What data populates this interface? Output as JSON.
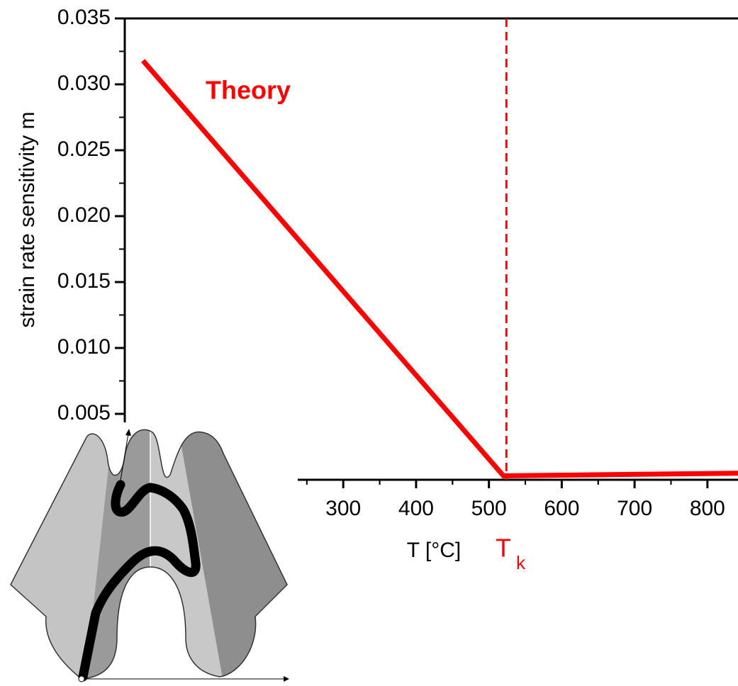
{
  "chart_data": {
    "type": "line",
    "xlabel": "T [°C]",
    "ylabel": "strain rate sensitivity m",
    "xlim": [
      0,
      842
    ],
    "ylim": [
      0,
      0.035
    ],
    "xticks": [
      300,
      400,
      500,
      600,
      700,
      800
    ],
    "yticks": [
      0.005,
      {
        "value": 0.01,
        "label": "0.010"
      },
      0.015,
      {
        "value": 0.02,
        "label": "0.020"
      },
      0.025,
      {
        "value": 0.03,
        "label": "0.030"
      },
      0.035
    ],
    "series": [
      {
        "name": "Theory",
        "color": "#ff0000",
        "x": [
          25,
          520,
          842
        ],
        "values": [
          0.0318,
          0.0003,
          0.0005
        ]
      }
    ],
    "vline": {
      "x": 524,
      "color": "#ff0000",
      "label": [
        "T",
        "k"
      ]
    }
  }
}
